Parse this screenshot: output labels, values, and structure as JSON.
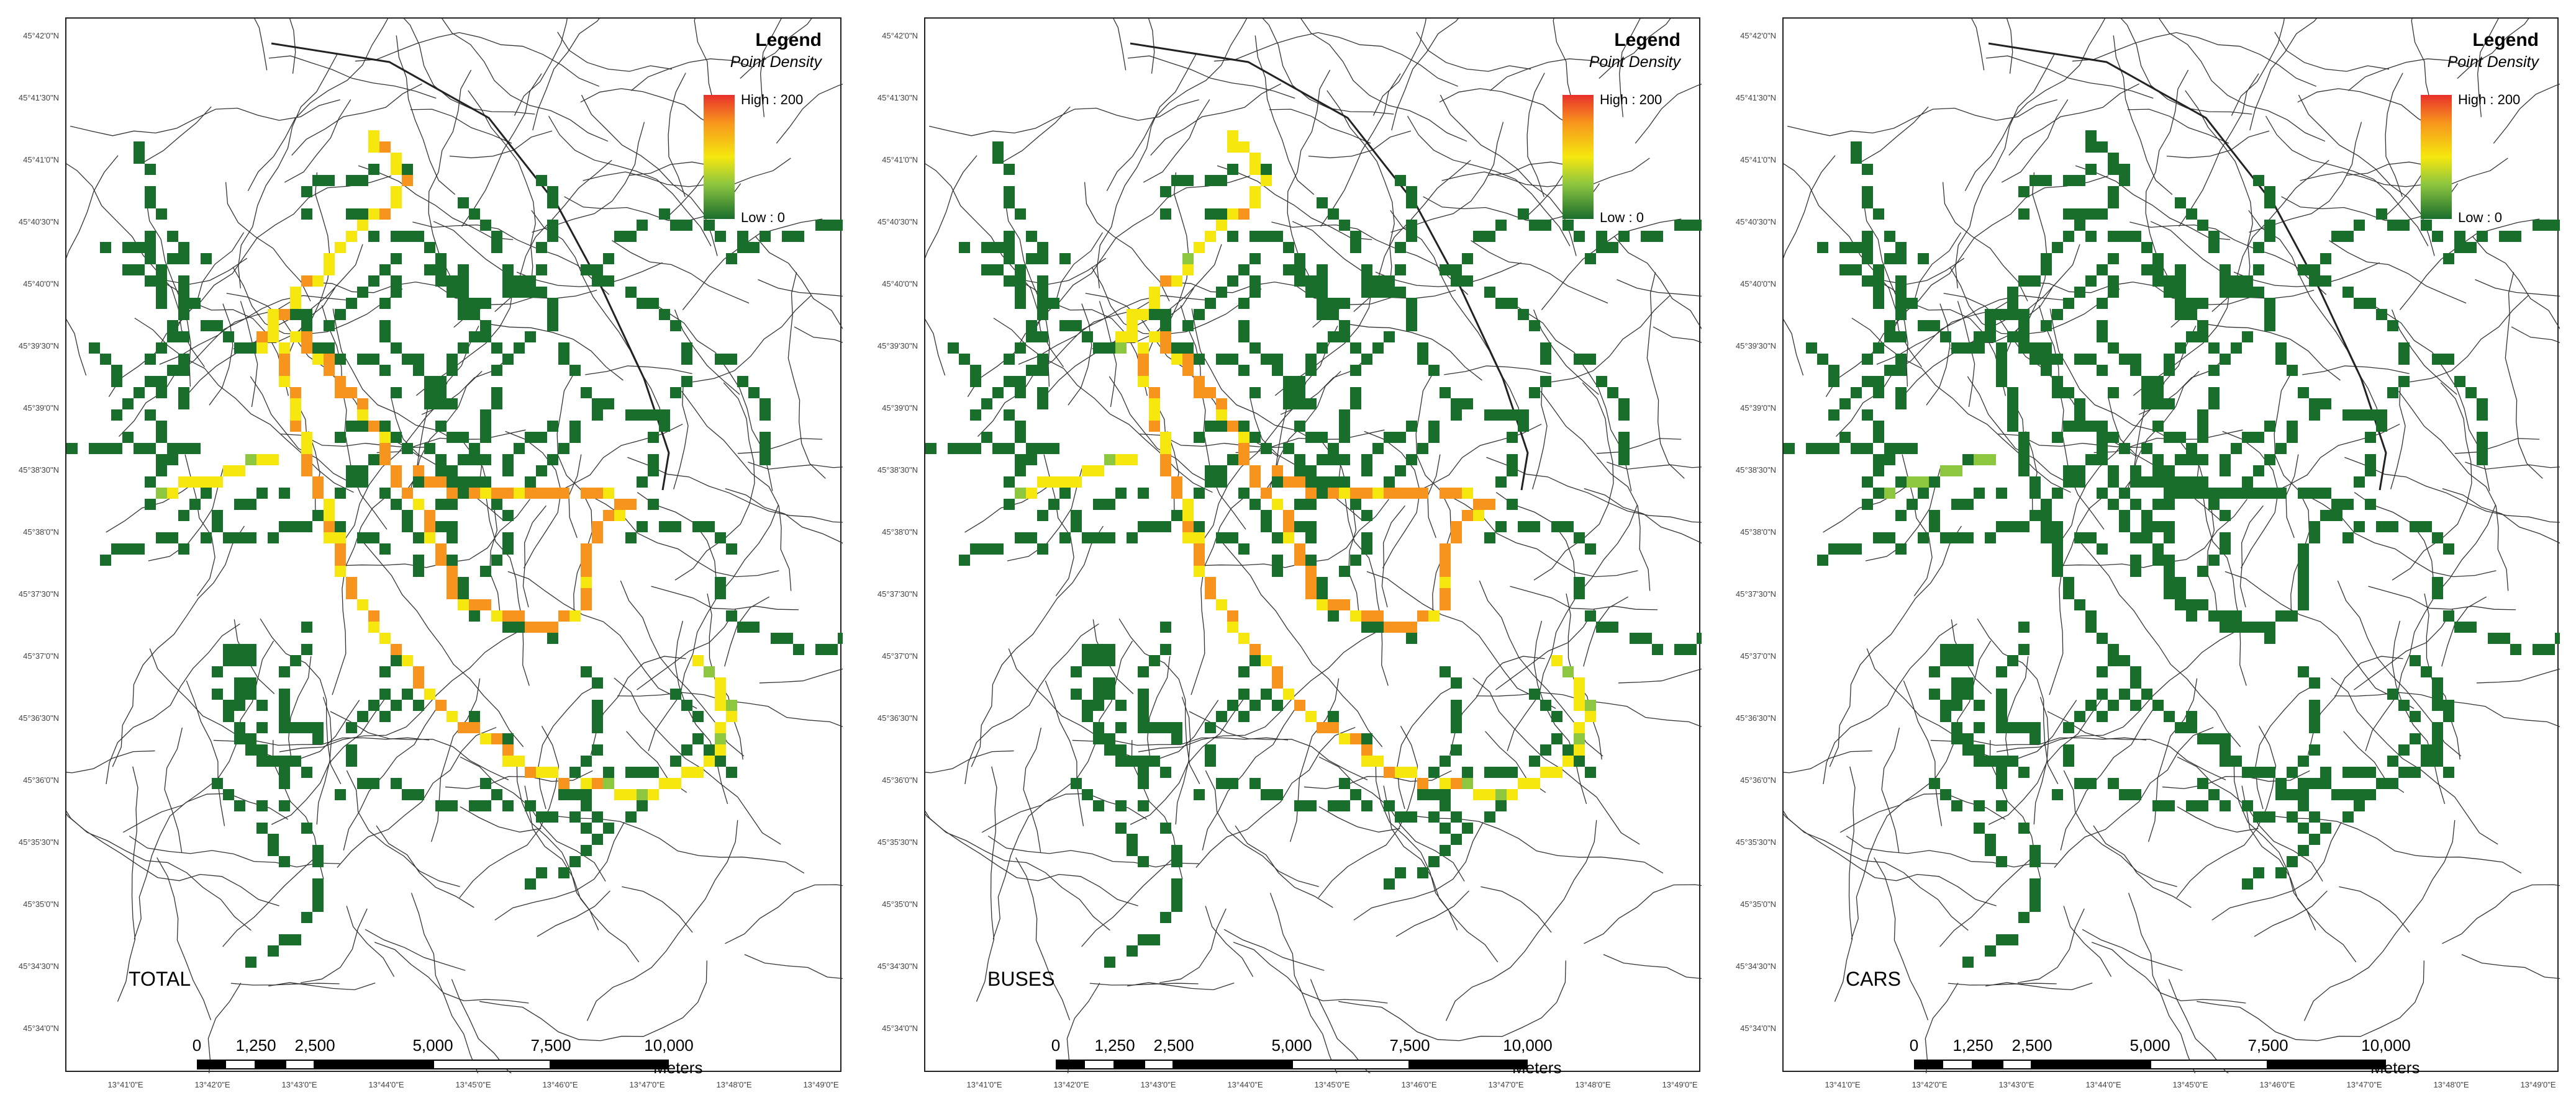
{
  "legend": {
    "title": "Legend",
    "subtitle": "Point Density",
    "high": "High : 200",
    "low": "Low : 0",
    "colors": [
      "#e8302a",
      "#f7941d",
      "#f6e80f",
      "#8dc63f",
      "#1a6e2c"
    ]
  },
  "scale": {
    "ticks": [
      "0",
      "1,250",
      "2,500",
      "5,000",
      "7,500",
      "10,000"
    ],
    "units": "Meters"
  },
  "panels": [
    {
      "label": "TOTAL",
      "mode": "total"
    },
    {
      "label": "BUSES",
      "mode": "buses"
    },
    {
      "label": "CARS",
      "mode": "cars"
    }
  ],
  "lat_labels": [
    "45°42'0\"N",
    "45°41'30\"N",
    "45°41'0\"N",
    "45°40'30\"N",
    "45°40'0\"N",
    "45°39'30\"N",
    "45°39'0\"N",
    "45°38'30\"N",
    "45°38'0\"N",
    "45°37'30\"N",
    "45°37'0\"N",
    "45°36'30\"N",
    "45°36'0\"N",
    "45°35'30\"N",
    "45°35'0\"N",
    "45°34'30\"N",
    "45°34'0\"N"
  ],
  "lon_labels": [
    "13°41'0\"E",
    "13°42'0\"E",
    "13°43'0\"E",
    "13°44'0\"E",
    "13°45'0\"E",
    "13°46'0\"E",
    "13°47'0\"E",
    "13°48'0\"E",
    "13°49'0\"E"
  ]
}
